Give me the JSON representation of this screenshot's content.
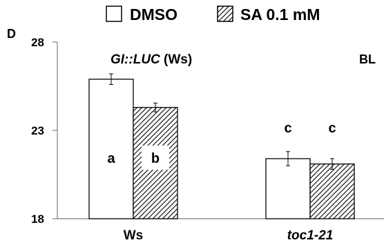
{
  "panel_label": "D",
  "legend": {
    "items": [
      {
        "name": "DMSO",
        "pattern": "open"
      },
      {
        "name": "SA 0.1 mM",
        "pattern": "hatched"
      }
    ]
  },
  "colors": {
    "axis": "#7f7f7f",
    "bar_stroke": "#000000",
    "bar_fill": "#ffffff",
    "hatch": "#000000"
  },
  "chart_data": {
    "type": "bar",
    "ylim": [
      18,
      28
    ],
    "yticks": [
      18,
      23,
      28
    ],
    "grid": false,
    "legend_position": "top",
    "categories": [
      "Ws",
      "toc1-21"
    ],
    "series": [
      {
        "name": "DMSO",
        "values": [
          25.9,
          21.4
        ],
        "errors": [
          0.3,
          0.4
        ],
        "letters": [
          "a",
          "c"
        ]
      },
      {
        "name": "SA 0.1 mM",
        "values": [
          24.3,
          21.1
        ],
        "errors": [
          0.25,
          0.3
        ],
        "letters": [
          "b",
          "c"
        ]
      }
    ],
    "annotations": [
      {
        "text_italic": "GI::LUC",
        "text_plain": " (Ws)",
        "position": "top-left"
      },
      {
        "text": "BL",
        "position": "top-right"
      }
    ]
  }
}
